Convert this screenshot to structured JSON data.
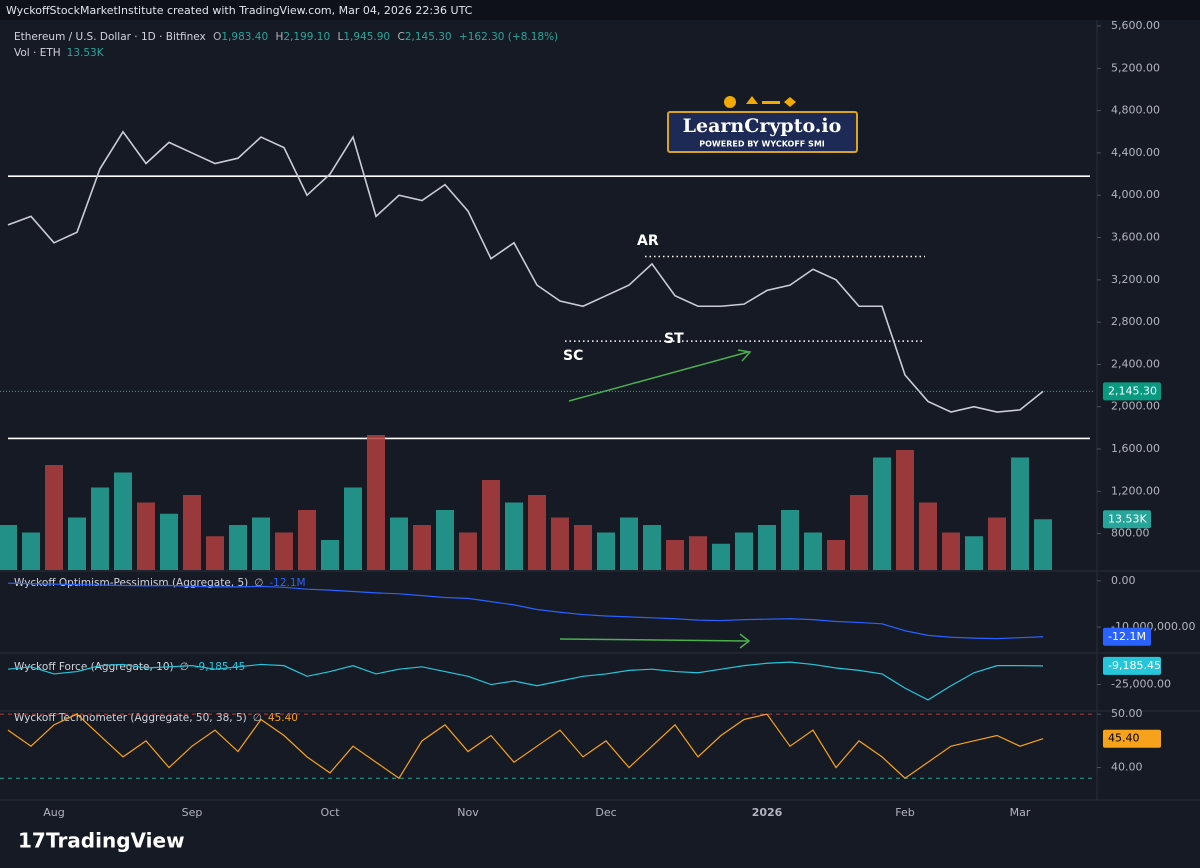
{
  "header": "WyckoffStockMarketInstitute created with TradingView.com, Mar 04, 2026 22:36 UTC",
  "legend": {
    "symbol": "Ethereum / U.S. Dollar · 1D · Bitfinex",
    "ohlc": [
      {
        "k": "O",
        "v": "1,983.40"
      },
      {
        "k": "H",
        "v": "2,199.10"
      },
      {
        "k": "L",
        "v": "1,945.90"
      },
      {
        "k": "C",
        "v": "2,145.30"
      }
    ],
    "change": "+162.30 (+8.18%)",
    "vol": "Vol · ETH"
  },
  "logo": {
    "name": "LearnCrypto.io",
    "tagline": "POWERED BY WYCKOFF SMI"
  },
  "brand": "TradingView",
  "chart_data": [
    {
      "type": "line",
      "name": "ETHUSD",
      "categories": [
        null,
        null,
        "Aug",
        null,
        null,
        null,
        null,
        null,
        "Sep",
        null,
        null,
        null,
        null,
        null,
        "Oct",
        null,
        null,
        null,
        null,
        null,
        "Nov",
        null,
        null,
        null,
        null,
        null,
        "Dec",
        null,
        null,
        null,
        null,
        null,
        null,
        "2026",
        null,
        null,
        null,
        null,
        null,
        "Feb",
        null,
        null,
        null,
        null,
        "Mar",
        null
      ],
      "color": "#c9ccd4",
      "values": [
        3720,
        3800,
        3550,
        3650,
        4250,
        4600,
        4300,
        4500,
        4400,
        4300,
        4350,
        4550,
        4450,
        4000,
        4200,
        4550,
        3800,
        4000,
        3950,
        4100,
        3850,
        3400,
        3550,
        3150,
        3000,
        2950,
        3050,
        3150,
        3350,
        3050,
        2950,
        2950,
        2970,
        3100,
        3150,
        3300,
        3200,
        2950,
        2950,
        2300,
        2050,
        1950,
        2000,
        1950,
        1970,
        2145.3
      ],
      "last_label": "2,145.30",
      "ylim": [
        456,
        5657
      ],
      "yticks": [
        {
          "value": 5600,
          "label": "5,600.00"
        },
        {
          "value": 5200,
          "label": "5,200.00"
        },
        {
          "value": 4800,
          "label": "4,800.00"
        },
        {
          "value": 4400,
          "label": "4,400.00"
        },
        {
          "value": 4000,
          "label": "4,000.00"
        },
        {
          "value": 3600,
          "label": "3,600.00"
        },
        {
          "value": 3200,
          "label": "3,200.00"
        },
        {
          "value": 2800,
          "label": "2,800.00"
        },
        {
          "value": 2400,
          "label": "2,400.00"
        },
        {
          "value": 2000,
          "label": "2,000.00"
        },
        {
          "value": 1600,
          "label": "1,600.00"
        },
        {
          "value": 1200,
          "label": "1,200.00"
        },
        {
          "value": 800,
          "label": "800.00"
        }
      ],
      "levels": [
        4180,
        1700
      ],
      "dotted_levels": [
        3420,
        2620
      ],
      "annotations": [
        "AR",
        "SC",
        "ST"
      ]
    },
    {
      "type": "bar",
      "name": "Vol",
      "values": [
        12,
        10,
        28,
        14,
        22,
        26,
        18,
        15,
        20,
        9,
        12,
        14,
        10,
        16,
        8,
        22,
        36,
        14,
        12,
        16,
        10,
        24,
        18,
        20,
        14,
        12,
        10,
        14,
        12,
        8,
        9,
        7,
        10,
        12,
        16,
        10,
        8,
        20,
        30,
        32,
        18,
        10,
        9,
        14,
        30,
        13.53
      ],
      "last_label": "13.53K",
      "up_color": "#26a69a",
      "down_color": "#b2403f",
      "ylim": [
        0,
        40
      ]
    },
    {
      "type": "line",
      "title": "Wyckoff Optimism-Pessimism (Aggregate, 5)",
      "legend_value": "-12.1M",
      "color": "#2962ff",
      "values": [
        -500000,
        -600000,
        -700000,
        -800000,
        -900000,
        -1000000,
        -1100000,
        -1000000,
        -1200000,
        -1300000,
        -1300000,
        -1200000,
        -1400000,
        -1800000,
        -2000000,
        -2300000,
        -2600000,
        -2800000,
        -3200000,
        -3600000,
        -3800000,
        -4500000,
        -5200000,
        -6200000,
        -6800000,
        -7300000,
        -7600000,
        -7800000,
        -8000000,
        -8200000,
        -8500000,
        -8600000,
        -8400000,
        -8300000,
        -8200000,
        -8400000,
        -8800000,
        -9000000,
        -9300000,
        -10800000,
        -11800000,
        -12200000,
        -12400000,
        -12500000,
        -12300000,
        -12100000
      ],
      "ylim": [
        -15400000,
        1700000
      ],
      "yticks": [
        {
          "value": 0,
          "label": "0.00"
        },
        {
          "value": -10000000,
          "label": "-10,000,000.00"
        }
      ]
    },
    {
      "type": "line",
      "title": "Wyckoff Force (Aggregate, 10)",
      "legend_value": "-9,185.45",
      "color": "#26c6da",
      "values": [
        -12000,
        -10000,
        -16000,
        -14000,
        -9000,
        -8000,
        -11000,
        -10000,
        -9000,
        -12000,
        -10000,
        -8000,
        -9000,
        -18000,
        -14000,
        -9000,
        -16000,
        -12000,
        -10000,
        -14000,
        -18000,
        -25000,
        -22000,
        -26000,
        -22000,
        -18000,
        -16000,
        -13000,
        -12000,
        -14000,
        -15000,
        -12000,
        -9000,
        -7000,
        -6000,
        -8000,
        -11000,
        -13000,
        -16000,
        -28000,
        -38000,
        -26000,
        -15000,
        -9000,
        -9000,
        -9185.45
      ],
      "ylim": [
        -46500,
        0
      ],
      "yticks": [
        {
          "value": -25000,
          "label": "-25,000.00"
        }
      ]
    },
    {
      "type": "line",
      "title": "Wyckoff Technometer (Aggregate, 50, 38, 5)",
      "legend_value": "45.40",
      "color": "#f7a21b",
      "values": [
        47,
        44,
        48,
        50,
        46,
        42,
        45,
        40,
        44,
        47,
        43,
        49,
        46,
        42,
        39,
        44,
        41,
        38,
        45,
        48,
        43,
        46,
        41,
        44,
        47,
        42,
        45,
        40,
        44,
        48,
        42,
        46,
        49,
        50,
        44,
        47,
        40,
        45,
        42,
        38,
        41,
        44,
        45,
        46,
        44,
        45.4
      ],
      "ylim": [
        35.8,
        50.4
      ],
      "yticks": [
        {
          "value": 50,
          "label": "50.00"
        },
        {
          "value": 40,
          "label": "40.00"
        }
      ],
      "dotted_levels": [
        50,
        38
      ]
    }
  ]
}
